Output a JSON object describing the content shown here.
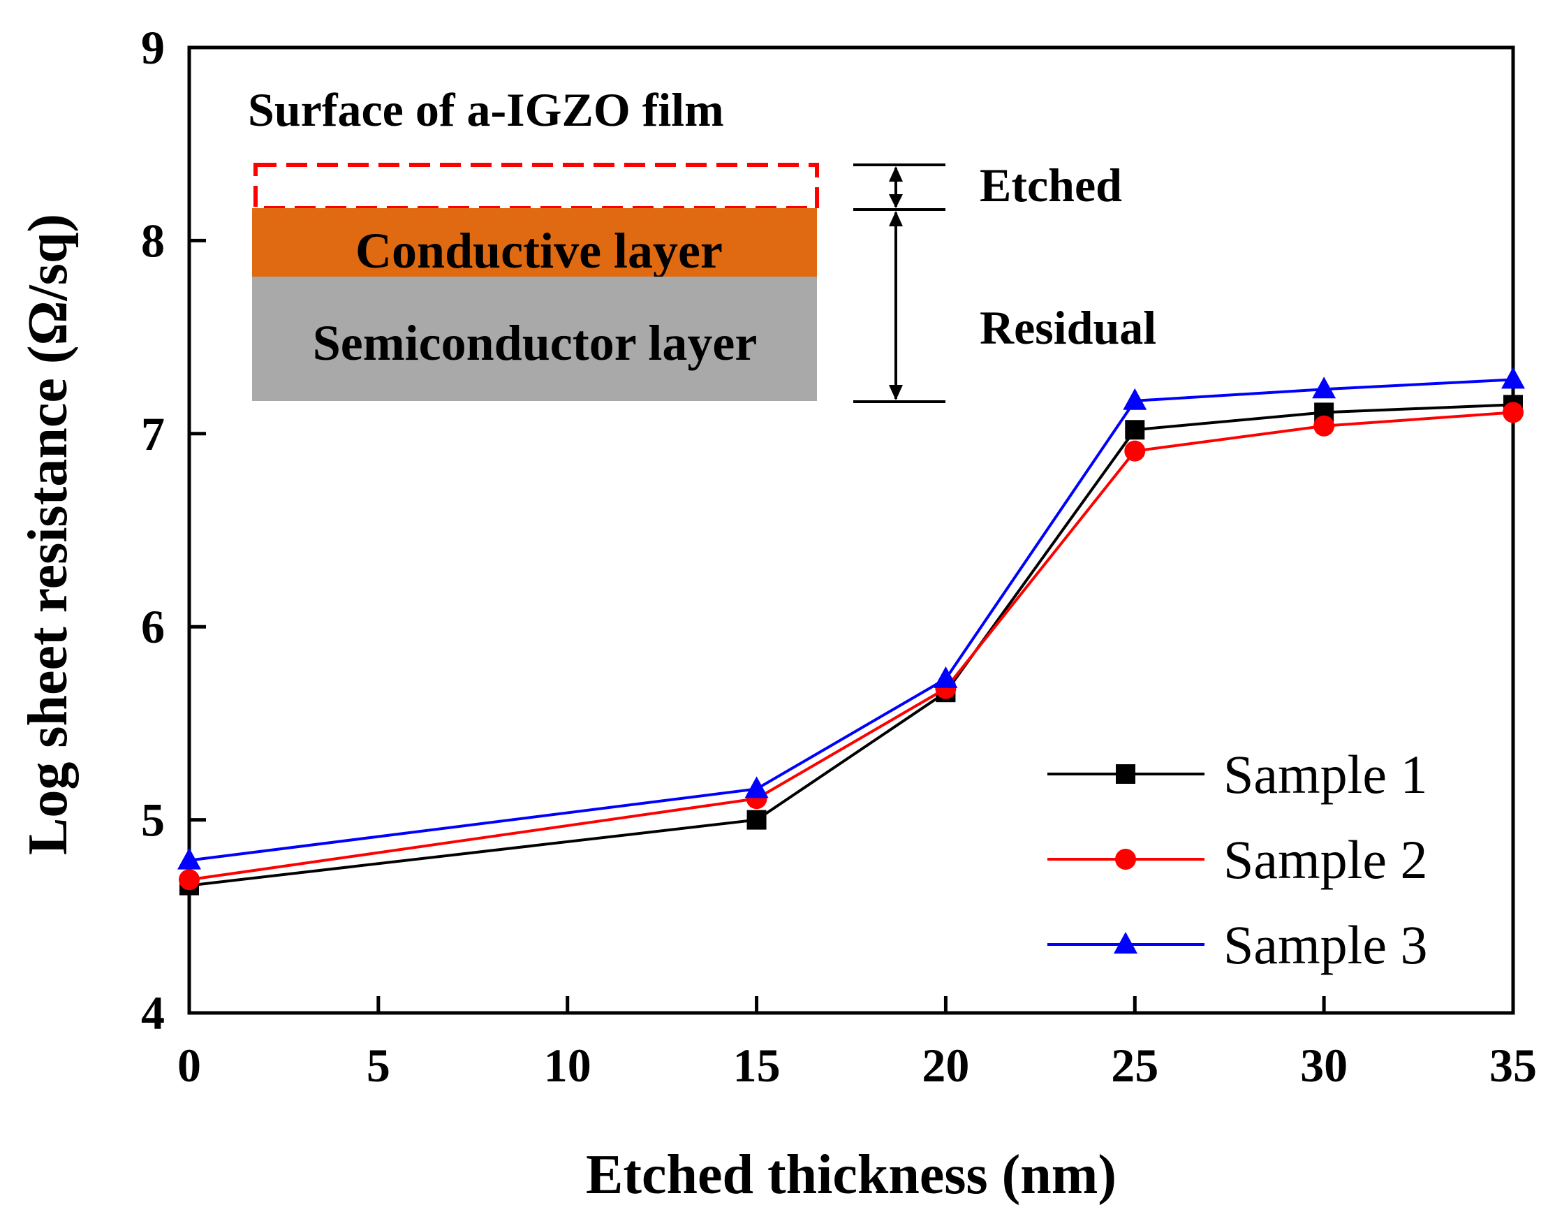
{
  "chart_data": {
    "type": "line",
    "title": "",
    "xlabel": "Etched thickness (nm)",
    "ylabel": "Log sheet resistance (Ω/sq)",
    "xlim": [
      0,
      35
    ],
    "ylim": [
      4,
      9
    ],
    "xticks": [
      0,
      5,
      10,
      15,
      20,
      25,
      30,
      35
    ],
    "yticks": [
      4,
      5,
      6,
      7,
      8,
      9
    ],
    "grid": false,
    "legend_position": "bottom-right",
    "x": [
      0,
      15,
      20,
      25,
      30,
      35
    ],
    "series": [
      {
        "name": "Sample 1",
        "color": "#000000",
        "marker": "square",
        "values": [
          4.66,
          5.0,
          5.66,
          7.02,
          7.11,
          7.15
        ]
      },
      {
        "name": "Sample 2",
        "color": "#ff0000",
        "marker": "circle",
        "values": [
          4.69,
          5.11,
          5.68,
          6.91,
          7.04,
          7.11
        ]
      },
      {
        "name": "Sample 3",
        "color": "#0000ff",
        "marker": "triangle",
        "values": [
          4.79,
          5.16,
          5.73,
          7.17,
          7.23,
          7.28
        ]
      }
    ],
    "inset": {
      "title": "Surface of a-IGZO film",
      "conductive_label": "Conductive layer",
      "semiconductor_label": "Semiconductor layer",
      "etched_label": "Etched",
      "residual_label": "Residual",
      "etched_border_color": "#ff0000",
      "conductive_color": "#e06a12",
      "semiconductor_color": "#a9a9a9"
    }
  }
}
